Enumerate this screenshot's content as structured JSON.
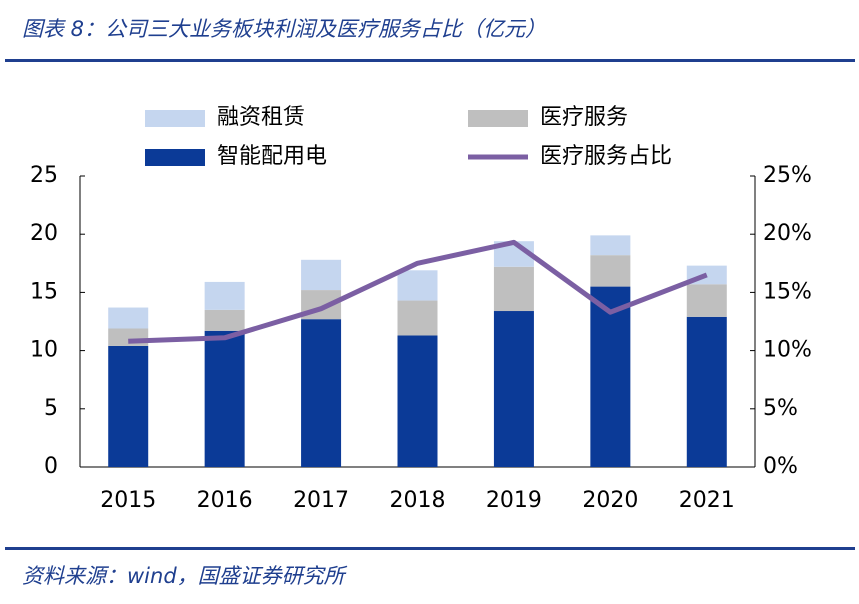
{
  "chart_data": {
    "type": "bar",
    "stacked": true,
    "title": "图表 8：公司三大业务板块利润及医疗服务占比（亿元）",
    "source": "资料来源：wind，国盛证券研究所",
    "categories": [
      "2015",
      "2016",
      "2017",
      "2018",
      "2019",
      "2020",
      "2021"
    ],
    "series": [
      {
        "name": "融资租赁",
        "color": "#c5d6ef",
        "values": [
          1.8,
          2.4,
          2.6,
          2.6,
          2.2,
          1.7,
          1.6
        ]
      },
      {
        "name": "医疗服务",
        "color": "#bfbfbf",
        "values": [
          1.5,
          1.8,
          2.5,
          3.0,
          3.8,
          2.7,
          2.8
        ]
      },
      {
        "name": "智能配用电",
        "color": "#0b3a97",
        "values": [
          10.4,
          11.7,
          12.7,
          11.3,
          13.4,
          15.5,
          12.9
        ]
      },
      {
        "name": "医疗服务占比",
        "color": "#7b5fa3",
        "type": "line",
        "axis": "y2",
        "values": [
          10.8,
          11.1,
          13.6,
          17.5,
          19.3,
          13.3,
          16.5
        ]
      }
    ],
    "ylim": [
      0,
      25
    ],
    "yticks": [
      0,
      5,
      10,
      15,
      20,
      25
    ],
    "y2lim": [
      0,
      25
    ],
    "y2ticks": [
      {
        "value": 0,
        "label": "0%"
      },
      {
        "value": 5,
        "label": "5%"
      },
      {
        "value": 10,
        "label": "10%"
      },
      {
        "value": 15,
        "label": "15%"
      },
      {
        "value": 20,
        "label": "20%"
      },
      {
        "value": 25,
        "label": "25%"
      }
    ],
    "grid": false
  }
}
